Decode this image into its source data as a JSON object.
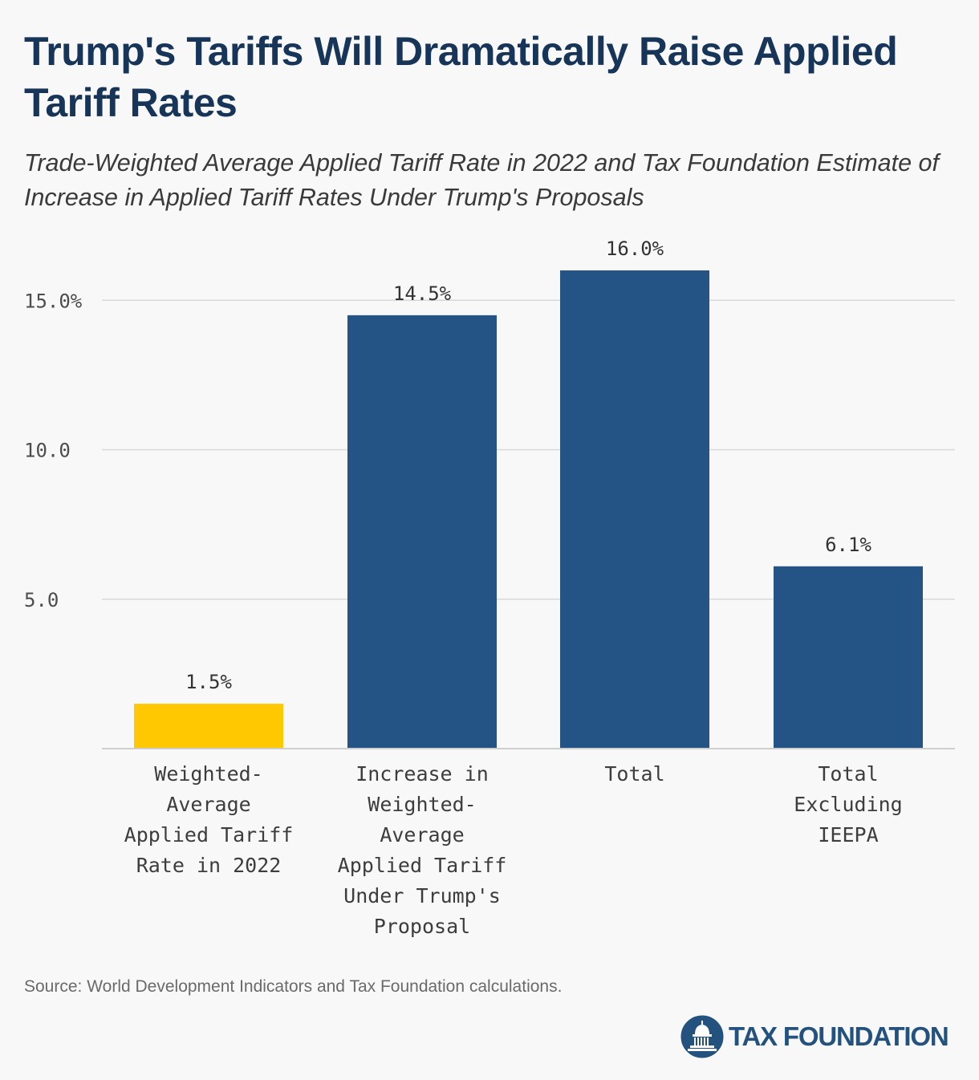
{
  "title": "Trump's Tariffs Will Dramatically Raise Applied Tariff Rates",
  "subtitle": "Trade-Weighted Average Applied Tariff Rate in 2022 and Tax Foundation Estimate of Increase in Applied Tariff Rates Under Trump's Proposals",
  "source": "Source: World Development Indicators and Tax Foundation calculations.",
  "logo": {
    "text": "TAX FOUNDATION",
    "icon": "capitol-dome-icon"
  },
  "colors": {
    "background": "#f8f8f8",
    "title": "#173559",
    "highlight_bar": "#ffc800",
    "bar": "#245485",
    "gridline": "#d9d9d9",
    "brand": "#23527f"
  },
  "chart_data": {
    "type": "bar",
    "categories": [
      [
        "Weighted-",
        "Average",
        "Applied Tariff",
        "Rate in 2022"
      ],
      [
        "Increase in",
        "Weighted-",
        "Average",
        "Applied Tariff",
        "Under Trump's",
        "Proposal"
      ],
      [
        "Total"
      ],
      [
        "Total",
        "Excluding",
        "IEEPA"
      ]
    ],
    "values": [
      1.5,
      14.5,
      16.0,
      6.1
    ],
    "value_labels": [
      "1.5%",
      "14.5%",
      "16.0%",
      "6.1%"
    ],
    "bar_colors": [
      "#ffc800",
      "#245485",
      "#245485",
      "#245485"
    ],
    "ylim": [
      0,
      16.0
    ],
    "yticks": [
      5.0,
      10.0,
      15.0
    ],
    "ytick_labels": [
      "5.0",
      "10.0",
      "15.0%"
    ],
    "grid": true,
    "xlabel": "",
    "ylabel": ""
  }
}
